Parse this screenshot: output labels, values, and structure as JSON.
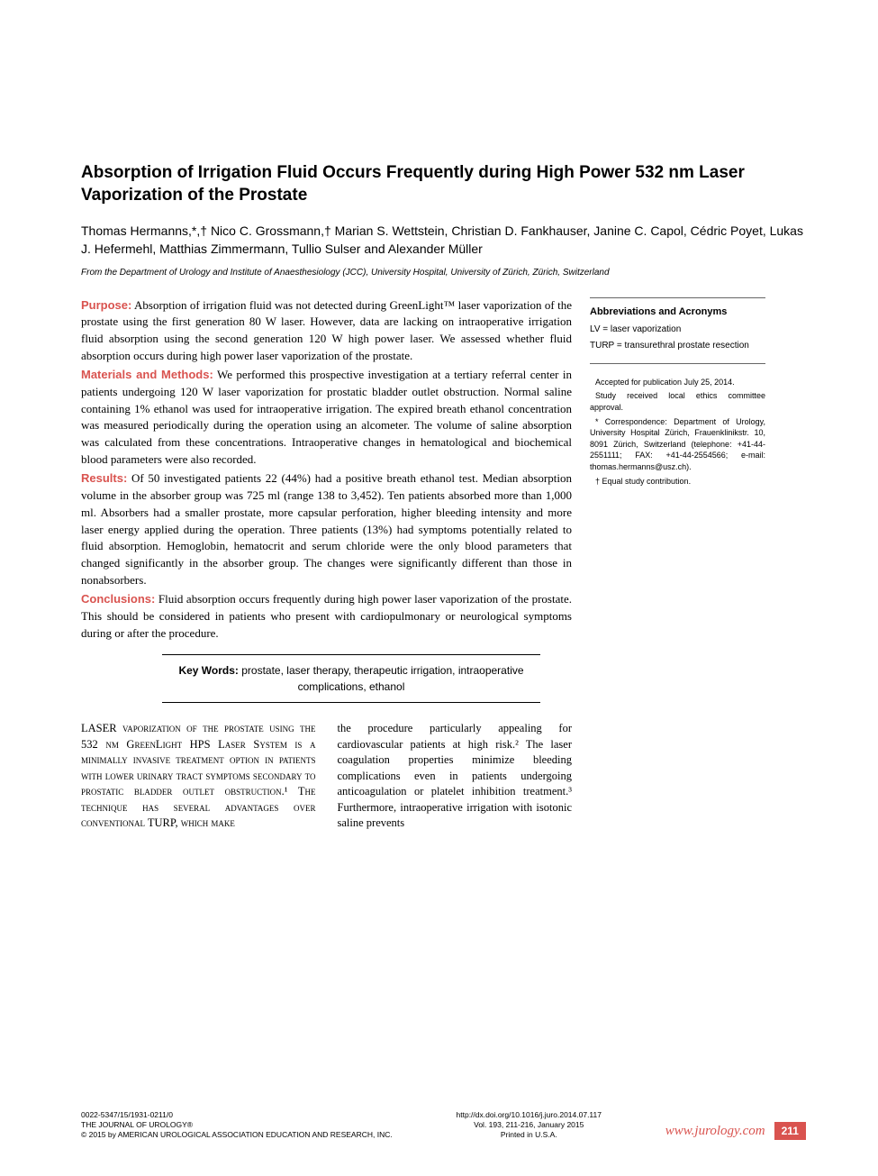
{
  "title": "Absorption of Irrigation Fluid Occurs Frequently during High Power 532 nm Laser Vaporization of the Prostate",
  "authors": "Thomas Hermanns,*,† Nico C. Grossmann,† Marian S. Wettstein, Christian D. Fankhauser, Janine C. Capol, Cédric Poyet, Lukas J. Hefermehl, Matthias Zimmermann, Tullio Sulser and Alexander Müller",
  "affiliation": "From the Department of Urology and Institute of Anaesthesiology (JCC), University Hospital, University of Zürich, Zürich, Switzerland",
  "abstract": {
    "purpose_label": "Purpose:",
    "purpose_text": " Absorption of irrigation fluid was not detected during GreenLight™ laser vaporization of the prostate using the first generation 80 W laser. However, data are lacking on intraoperative irrigation fluid absorption using the second generation 120 W high power laser. We assessed whether fluid absorption occurs during high power laser vaporization of the prostate.",
    "methods_label": "Materials and Methods:",
    "methods_text": " We performed this prospective investigation at a tertiary referral center in patients undergoing 120 W laser vaporization for prostatic bladder outlet obstruction. Normal saline containing 1% ethanol was used for intraoperative irrigation. The expired breath ethanol concentration was measured periodically during the operation using an alcometer. The volume of saline absorption was calculated from these concentrations. Intraoperative changes in hematological and biochemical blood parameters were also recorded.",
    "results_label": "Results:",
    "results_text": " Of 50 investigated patients 22 (44%) had a positive breath ethanol test. Median absorption volume in the absorber group was 725 ml (range 138 to 3,452). Ten patients absorbed more than 1,000 ml. Absorbers had a smaller prostate, more capsular perforation, higher bleeding intensity and more laser energy applied during the operation. Three patients (13%) had symptoms potentially related to fluid absorption. Hemoglobin, hematocrit and serum chloride were the only blood parameters that changed significantly in the absorber group. The changes were significantly different than those in nonabsorbers.",
    "conclusions_label": "Conclusions:",
    "conclusions_text": " Fluid absorption occurs frequently during high power laser vaporization of the prostate. This should be considered in patients who present with cardiopulmonary or neurological symptoms during or after the procedure."
  },
  "keywords": {
    "label": "Key Words: ",
    "text": "prostate, laser therapy, therapeutic irrigation, intraoperative complications, ethanol"
  },
  "sidebar": {
    "heading": "Abbreviations and Acronyms",
    "items": [
      "LV = laser vaporization",
      "TURP = transurethral prostate resection"
    ],
    "notes": [
      "Accepted for publication July 25, 2014.",
      "Study received local ethics committee approval.",
      "* Correspondence: Department of Urology, University Hospital Zürich, Frauenklinikstr. 10, 8091 Zürich, Switzerland (telephone: +41-44-2551111; FAX: +41-44-2554566; e-mail: thomas.hermanns@usz.ch).",
      "† Equal study contribution."
    ]
  },
  "body": {
    "col1": "LASER vaporization of the prostate using the 532 nm GreenLight HPS Laser System is a minimally invasive treatment option in patients with lower urinary tract symptoms secondary to prostatic bladder outlet obstruction.¹ The technique has several advantages over conventional TURP, which make",
    "col2": "the procedure particularly appealing for cardiovascular patients at high risk.² The laser coagulation properties minimize bleeding complications even in patients undergoing anticoagulation or platelet inhibition treatment.³ Furthermore, intraoperative irrigation with isotonic saline prevents"
  },
  "footer": {
    "left_line1": "0022-5347/15/1931-0211/0",
    "left_line2": "THE JOURNAL OF UROLOGY®",
    "left_line3": "© 2015 by AMERICAN UROLOGICAL ASSOCIATION EDUCATION AND RESEARCH, INC.",
    "center_line1": "http://dx.doi.org/10.1016/j.juro.2014.07.117",
    "center_line2": "Vol. 193, 211-216, January 2015",
    "center_line3": "Printed in U.S.A.",
    "url": "www.jurology.com",
    "page": "211"
  },
  "colors": {
    "accent": "#d9534f",
    "text": "#000000",
    "background": "#ffffff",
    "rule": "#666666"
  }
}
